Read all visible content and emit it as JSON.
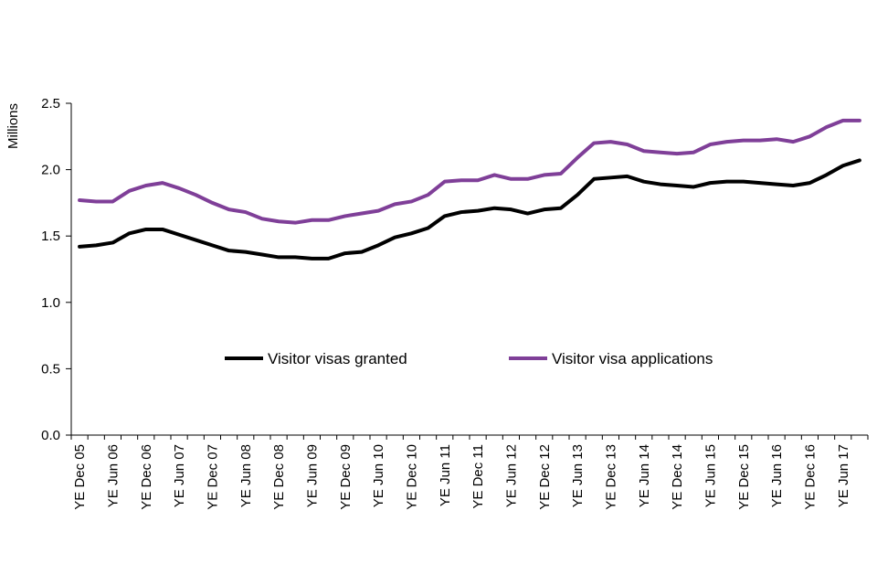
{
  "chart_data": {
    "type": "line",
    "title": "",
    "xlabel": "",
    "ylabel": "Millions",
    "ylim": [
      0,
      2.5
    ],
    "yticks": [
      "0.0",
      "0.5",
      "1.0",
      "1.5",
      "2.0",
      "2.5"
    ],
    "x_tick_labels": [
      "YE Dec 05",
      "YE Jun 06",
      "YE Dec 06",
      "YE Jun 07",
      "YE Dec 07",
      "YE Jun 08",
      "YE Dec 08",
      "YE Jun 09",
      "YE Dec 09",
      "YE Jun 10",
      "YE Dec 10",
      "YE Jun 11",
      "YE Dec 11",
      "YE Jun 12",
      "YE Dec 12",
      "YE Jun 13",
      "YE Dec 13",
      "YE Jun 14",
      "YE Dec 14",
      "YE Jun 15",
      "YE Dec 15",
      "YE Jun 16",
      "YE Dec 16",
      "YE Jun 17"
    ],
    "period": "quarterly, YE Dec 05 to YE Sep 17",
    "series": [
      {
        "name": "Visitor visas granted",
        "color": "#000000",
        "values": [
          1.42,
          1.43,
          1.45,
          1.52,
          1.55,
          1.55,
          1.51,
          1.47,
          1.43,
          1.39,
          1.38,
          1.36,
          1.34,
          1.34,
          1.33,
          1.33,
          1.37,
          1.38,
          1.43,
          1.49,
          1.52,
          1.56,
          1.65,
          1.68,
          1.69,
          1.71,
          1.7,
          1.67,
          1.7,
          1.71,
          1.81,
          1.93,
          1.94,
          1.95,
          1.91,
          1.89,
          1.88,
          1.87,
          1.9,
          1.91,
          1.91,
          1.9,
          1.89,
          1.88,
          1.9,
          1.96,
          2.03,
          2.07
        ]
      },
      {
        "name": "Visitor visa applications",
        "color": "#7f3f98",
        "values": [
          1.77,
          1.76,
          1.76,
          1.84,
          1.88,
          1.9,
          1.86,
          1.81,
          1.75,
          1.7,
          1.68,
          1.63,
          1.61,
          1.6,
          1.62,
          1.62,
          1.65,
          1.67,
          1.69,
          1.74,
          1.76,
          1.81,
          1.91,
          1.92,
          1.92,
          1.96,
          1.93,
          1.93,
          1.96,
          1.97,
          2.09,
          2.2,
          2.21,
          2.19,
          2.14,
          2.13,
          2.12,
          2.13,
          2.19,
          2.21,
          2.22,
          2.22,
          2.23,
          2.21,
          2.25,
          2.32,
          2.37,
          2.37
        ]
      }
    ],
    "legend": "inside-middle"
  }
}
